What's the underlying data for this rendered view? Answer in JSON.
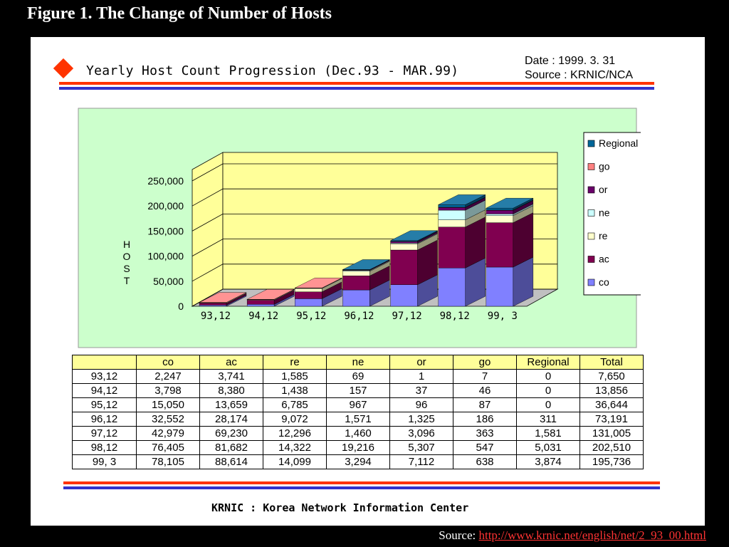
{
  "page_title": "Figure 1. The Change of Number of Hosts",
  "chart_heading": "Yearly Host Count Progression (Dec.93 - MAR.99)",
  "meta": {
    "date": "Date : 1999. 3. 31",
    "source": "Source : KRNIC/NCA"
  },
  "footer": "KRNIC : Korea Network Information Center",
  "source_line": {
    "label": "Source:",
    "url_text": "http://www.krnic.net/english/net/2_93_00.html"
  },
  "colors": {
    "co": "#8080ff",
    "ac": "#800050",
    "re": "#ffffcc",
    "ne": "#ccffff",
    "or": "#6a006a",
    "go": "#ff8080",
    "Regional": "#006699",
    "plot_bg": "#ffff99",
    "outer_bg": "#ccffcc",
    "rule_red": "#ff3300",
    "rule_blue": "#3333cc"
  },
  "chart_data": {
    "type": "bar",
    "stacked": true,
    "three_d": true,
    "categories": [
      "93,12",
      "94,12",
      "95,12",
      "96,12",
      "97,12",
      "98,12",
      "99, 3"
    ],
    "ylabel": "HOST",
    "ylim": [
      0,
      250000
    ],
    "yticks": [
      "250,000",
      "200,000",
      "150,000",
      "100,000",
      "50,000",
      "0"
    ],
    "legend": [
      "Regional",
      "go",
      "or",
      "ne",
      "re",
      "ac",
      "co"
    ],
    "legend_position": "right",
    "series": [
      {
        "name": "co",
        "values": [
          2247,
          3798,
          15050,
          32552,
          42979,
          76405,
          78105
        ]
      },
      {
        "name": "ac",
        "values": [
          3741,
          8380,
          13659,
          28174,
          69230,
          81682,
          88614
        ]
      },
      {
        "name": "re",
        "values": [
          1585,
          1438,
          6785,
          9072,
          12296,
          14322,
          14099
        ]
      },
      {
        "name": "ne",
        "values": [
          69,
          157,
          967,
          1571,
          1460,
          19216,
          3294
        ]
      },
      {
        "name": "or",
        "values": [
          1,
          37,
          96,
          1325,
          3096,
          5307,
          7112
        ]
      },
      {
        "name": "go",
        "values": [
          7,
          46,
          87,
          186,
          363,
          547,
          638
        ]
      },
      {
        "name": "Regional",
        "values": [
          0,
          0,
          0,
          311,
          1581,
          5031,
          3874
        ]
      }
    ]
  },
  "table": {
    "headers": [
      "",
      "co",
      "ac",
      "re",
      "ne",
      "or",
      "go",
      "Regional",
      "Total"
    ],
    "rows": [
      [
        "93,12",
        "2,247",
        "3,741",
        "1,585",
        "69",
        "1",
        "7",
        "0",
        "7,650"
      ],
      [
        "94,12",
        "3,798",
        "8,380",
        "1,438",
        "157",
        "37",
        "46",
        "0",
        "13,856"
      ],
      [
        "95,12",
        "15,050",
        "13,659",
        "6,785",
        "967",
        "96",
        "87",
        "0",
        "36,644"
      ],
      [
        "96,12",
        "32,552",
        "28,174",
        "9,072",
        "1,571",
        "1,325",
        "186",
        "311",
        "73,191"
      ],
      [
        "97,12",
        "42,979",
        "69,230",
        "12,296",
        "1,460",
        "3,096",
        "363",
        "1,581",
        "131,005"
      ],
      [
        "98,12",
        "76,405",
        "81,682",
        "14,322",
        "19,216",
        "5,307",
        "547",
        "5,031",
        "202,510"
      ],
      [
        "99, 3",
        "78,105",
        "88,614",
        "14,099",
        "3,294",
        "7,112",
        "638",
        "3,874",
        "195,736"
      ]
    ]
  }
}
